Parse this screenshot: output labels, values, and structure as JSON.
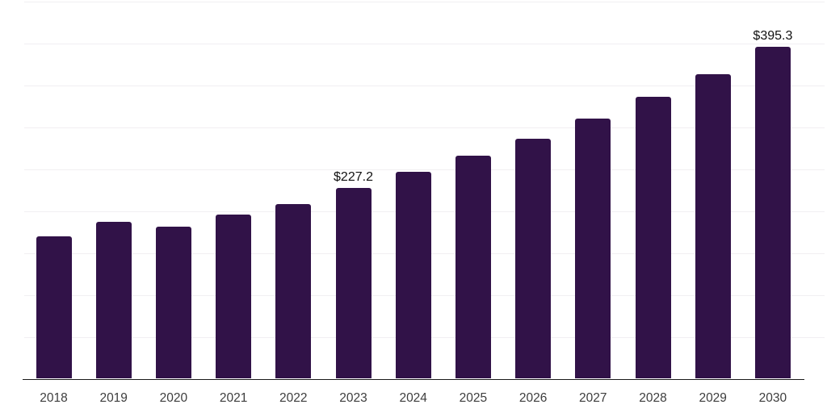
{
  "chart_data": {
    "type": "bar",
    "title": "",
    "xlabel": "",
    "ylabel": "",
    "categories": [
      "2018",
      "2019",
      "2020",
      "2021",
      "2022",
      "2023",
      "2024",
      "2025",
      "2026",
      "2027",
      "2028",
      "2029",
      "2030"
    ],
    "values": [
      169.6,
      186.8,
      181.6,
      195.5,
      207.9,
      227.2,
      246.7,
      266.3,
      286.4,
      310.4,
      336.0,
      363.4,
      395.3
    ],
    "data_labels": [
      {
        "category": "2023",
        "text": "$227.2"
      },
      {
        "category": "2030",
        "text": "$395.3"
      }
    ],
    "ylim": [
      0,
      450
    ],
    "grid_step": 50,
    "grid": true,
    "legend": false,
    "colors": {
      "bar": "#311248",
      "gridline": "#F1EFF2",
      "axis_line": "#1A1A1A",
      "tick_label": "#3D3D3D",
      "data_label": "#111111",
      "background": "#FFFFFF"
    }
  }
}
